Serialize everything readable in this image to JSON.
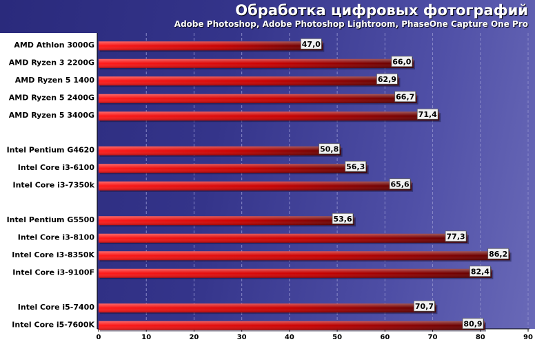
{
  "chart_data": {
    "type": "bar",
    "orientation": "horizontal",
    "title": "Обработка цифровых фотографий",
    "subtitle": "Adobe Photoshop, Adobe Photoshop Lightroom, PhaseOne Capture One Pro",
    "xlim": [
      0,
      90
    ],
    "xticks": [
      0,
      10,
      20,
      30,
      40,
      50,
      60,
      70,
      80,
      90
    ],
    "grid": "vertical dashed",
    "categories": [
      "AMD Athlon 3000G",
      "AMD Ryzen 3 2200G",
      "AMD Ryzen 5 1400",
      "AMD Ryzen 5 2400G",
      "AMD Ryzen 5 3400G",
      "Intel Pentium G4620",
      "Intel Core i3-6100",
      "Intel Core i3-7350k",
      "Intel Pentium G5500",
      "Intel Core i3-8100",
      "Intel Core i3-8350K",
      "Intel Core i3-9100F",
      "Intel Core i5-7400",
      "Intel Core i5-7600K"
    ],
    "groups": [
      5,
      3,
      4,
      2
    ],
    "values": [
      47.0,
      66.0,
      62.9,
      66.7,
      71.4,
      50.8,
      56.3,
      65.6,
      53.6,
      77.3,
      86.2,
      82.4,
      70.7,
      80.9
    ],
    "value_labels": [
      "47,0",
      "66,0",
      "62,9",
      "66,7",
      "71,4",
      "50,8",
      "56,3",
      "65,6",
      "53,6",
      "77,3",
      "86,2",
      "82,4",
      "70,7",
      "80,9"
    ],
    "colors": {
      "bar_light": "#ff1a1a",
      "bar_dark": "#5a0000",
      "label_panel": "#ffffff",
      "value_box": "#f2f2f2",
      "grid": "#8a8ac8"
    }
  }
}
